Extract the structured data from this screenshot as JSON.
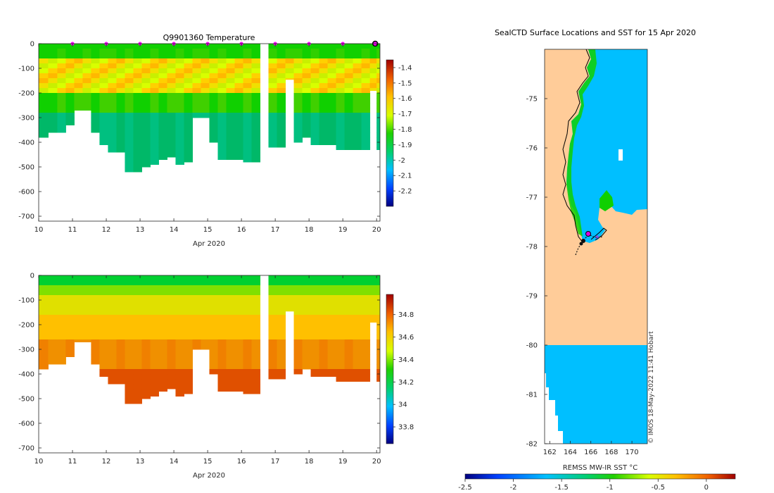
{
  "chart_data": [
    {
      "type": "heatmap",
      "title": "Q9901360  Temperature",
      "xlabel": "Apr 2020",
      "ylabel": "",
      "xlim": [
        10,
        20.1
      ],
      "ylim": [
        -720,
        0
      ],
      "xticks": [
        "10",
        "11",
        "12",
        "13",
        "14",
        "15",
        "16",
        "17",
        "18",
        "19",
        "20"
      ],
      "yticks": [
        "0",
        "-100",
        "-200",
        "-300",
        "-400",
        "-500",
        "-600",
        "-700"
      ],
      "colorbar": {
        "ticks": [
          "-1.4",
          "-1.5",
          "-1.6",
          "-1.7",
          "-1.8",
          "-1.9",
          "-2",
          "-2.1",
          "-2.2"
        ],
        "range": [
          -2.3,
          -1.35
        ]
      },
      "profile_days": [
        10.0,
        10.28,
        10.55,
        10.8,
        11.05,
        11.3,
        11.55,
        11.8,
        12.05,
        12.3,
        12.55,
        12.8,
        13.05,
        13.3,
        13.55,
        13.8,
        14.05,
        14.3,
        14.55,
        14.8,
        15.05,
        15.3,
        15.55,
        15.8,
        16.05,
        16.3,
        16.55,
        16.8,
        17.05,
        17.3,
        17.55,
        17.8,
        18.05,
        18.3,
        18.55,
        18.8,
        19.05,
        19.3,
        19.55,
        19.8,
        20.0
      ],
      "profile_max_depth": [
        380,
        360,
        360,
        330,
        270,
        270,
        360,
        410,
        440,
        440,
        520,
        520,
        500,
        490,
        470,
        460,
        490,
        480,
        300,
        300,
        400,
        470,
        470,
        470,
        480,
        480,
        0,
        420,
        420,
        145,
        400,
        380,
        410,
        410,
        410,
        430,
        430,
        430,
        430,
        190,
        430
      ],
      "surface_marker_days": [
        11,
        12,
        13,
        14,
        15,
        16,
        17,
        18,
        19
      ],
      "last_position_day": 20
    },
    {
      "type": "heatmap",
      "title": "",
      "xlabel": "Apr 2020",
      "ylabel": "",
      "xlim": [
        10,
        20.1
      ],
      "ylim": [
        -720,
        0
      ],
      "xticks": [
        "10",
        "11",
        "12",
        "13",
        "14",
        "15",
        "16",
        "17",
        "18",
        "19",
        "20"
      ],
      "yticks": [
        "0",
        "-100",
        "-200",
        "-300",
        "-400",
        "-500",
        "-600",
        "-700"
      ],
      "colorbar": {
        "ticks": [
          "34.8",
          "34.6",
          "34.4",
          "34.2",
          "34",
          "33.8"
        ],
        "range": [
          33.65,
          34.98
        ]
      }
    },
    {
      "type": "heatmap",
      "title": "SealCTD Surface Locations and SST for 15 Apr 2020",
      "xlabel": "",
      "ylabel": "",
      "xlim": [
        161.5,
        171.5
      ],
      "ylim": [
        -82,
        -74
      ],
      "xticks": [
        "162",
        "164",
        "166",
        "168",
        "170"
      ],
      "yticks": [
        "-75",
        "-76",
        "-77",
        "-78",
        "-79",
        "-80",
        "-81",
        "-82"
      ],
      "colorbar_label": "REMSS MW-IR SST °C",
      "colorbar_ticks": [
        "-2.5",
        "-2",
        "-1.5",
        "-1",
        "-0.5",
        "0"
      ],
      "colorbar_range": [
        -2.5,
        0.3
      ],
      "credit": "© IMOS 18-May-2022 11:41 Hobart"
    }
  ]
}
